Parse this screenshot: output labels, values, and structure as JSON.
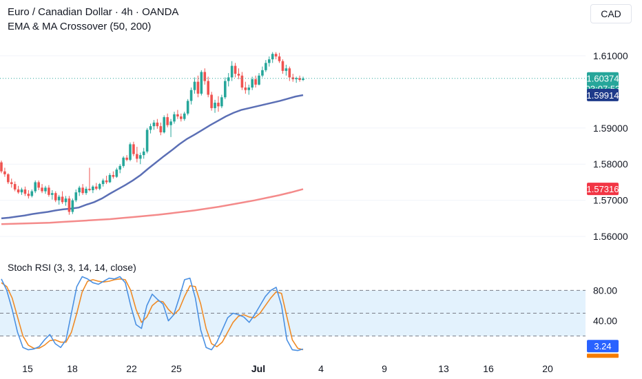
{
  "header": {
    "title": "Euro / Canadian Dollar · 4h · OANDA",
    "indicator": "EMA & MA Crossover (50, 200)",
    "currency": "CAD"
  },
  "oscillator": {
    "title": "Stoch RSI (3, 3, 14, 14, close)"
  },
  "colors": {
    "up": "#26a69a",
    "down": "#ef5350",
    "ema": "#5b6fb5",
    "ma": "#f48a8a",
    "k": "#4a90e2",
    "d": "#f08a24",
    "band": "#e3f2fd"
  },
  "chart_data": [
    {
      "type": "candlestick",
      "ylim": [
        1.5545,
        1.6155
      ],
      "yticks": [
        "1.56000",
        "1.57000",
        "1.58000",
        "1.59000",
        "1.61000"
      ],
      "xticks": [
        "15",
        "18",
        "22",
        "25",
        "Jul",
        "4",
        "9",
        "13",
        "16",
        "20"
      ],
      "last_price": "1.60374",
      "countdown": "03:07:53",
      "ema_label": "1.59914",
      "ma_label": "1.57316",
      "candles": [
        [
          1.5805,
          1.581,
          1.5775,
          1.578
        ],
        [
          1.578,
          1.579,
          1.5765,
          1.5772
        ],
        [
          1.5772,
          1.5775,
          1.5745,
          1.575
        ],
        [
          1.575,
          1.576,
          1.5735,
          1.5745
        ],
        [
          1.5745,
          1.5752,
          1.5725,
          1.573
        ],
        [
          1.573,
          1.574,
          1.5718,
          1.5722
        ],
        [
          1.5722,
          1.5735,
          1.5715,
          1.573
        ],
        [
          1.573,
          1.5738,
          1.5712,
          1.5718
        ],
        [
          1.5718,
          1.5728,
          1.5705,
          1.5712
        ],
        [
          1.5712,
          1.573,
          1.5708,
          1.5725
        ],
        [
          1.5725,
          1.5755,
          1.572,
          1.575
        ],
        [
          1.575,
          1.5755,
          1.5728,
          1.5735
        ],
        [
          1.5735,
          1.5745,
          1.572,
          1.5725
        ],
        [
          1.5725,
          1.574,
          1.5718,
          1.5735
        ],
        [
          1.5735,
          1.5742,
          1.571,
          1.5715
        ],
        [
          1.5715,
          1.5728,
          1.5702,
          1.572
        ],
        [
          1.572,
          1.5725,
          1.5695,
          1.57
        ],
        [
          1.57,
          1.5715,
          1.5688,
          1.571
        ],
        [
          1.571,
          1.5725,
          1.569,
          1.5695
        ],
        [
          1.5695,
          1.5712,
          1.5685,
          1.5705
        ],
        [
          1.5705,
          1.5712,
          1.566,
          1.5668
        ],
        [
          1.5668,
          1.5705,
          1.5662,
          1.57
        ],
        [
          1.57,
          1.573,
          1.5695,
          1.5722
        ],
        [
          1.5722,
          1.574,
          1.5712,
          1.5735
        ],
        [
          1.5735,
          1.5745,
          1.5715,
          1.572
        ],
        [
          1.572,
          1.5738,
          1.5715,
          1.5732
        ],
        [
          1.5732,
          1.579,
          1.5725,
          1.5728
        ],
        [
          1.5728,
          1.5742,
          1.572,
          1.5738
        ],
        [
          1.5738,
          1.5748,
          1.5728,
          1.5732
        ],
        [
          1.5732,
          1.5748,
          1.5728,
          1.5745
        ],
        [
          1.5745,
          1.576,
          1.5738,
          1.5755
        ],
        [
          1.5755,
          1.5768,
          1.5745,
          1.575
        ],
        [
          1.575,
          1.5775,
          1.5748,
          1.577
        ],
        [
          1.577,
          1.578,
          1.576,
          1.5765
        ],
        [
          1.5765,
          1.579,
          1.5762,
          1.5785
        ],
        [
          1.5785,
          1.58,
          1.5775,
          1.5795
        ],
        [
          1.5795,
          1.5822,
          1.579,
          1.5818
        ],
        [
          1.5818,
          1.5825,
          1.5808,
          1.5812
        ],
        [
          1.5812,
          1.586,
          1.5808,
          1.5855
        ],
        [
          1.5855,
          1.5862,
          1.5822,
          1.5828
        ],
        [
          1.5828,
          1.5848,
          1.5805,
          1.5815
        ],
        [
          1.5815,
          1.5832,
          1.58,
          1.5825
        ],
        [
          1.5825,
          1.5845,
          1.5815,
          1.5835
        ],
        [
          1.5835,
          1.59,
          1.583,
          1.5895
        ],
        [
          1.5895,
          1.5912,
          1.5885,
          1.5905
        ],
        [
          1.5905,
          1.5922,
          1.5895,
          1.5915
        ],
        [
          1.5915,
          1.5925,
          1.5898,
          1.5905
        ],
        [
          1.5905,
          1.5915,
          1.588,
          1.5888
        ],
        [
          1.5888,
          1.5935,
          1.5885,
          1.593
        ],
        [
          1.593,
          1.594,
          1.5902,
          1.5908
        ],
        [
          1.5908,
          1.5925,
          1.5875,
          1.5918
        ],
        [
          1.5918,
          1.5945,
          1.5912,
          1.5938
        ],
        [
          1.5938,
          1.595,
          1.5925,
          1.5932
        ],
        [
          1.5932,
          1.594,
          1.5918,
          1.5925
        ],
        [
          1.5925,
          1.5945,
          1.592,
          1.594
        ],
        [
          1.594,
          1.598,
          1.5935,
          1.5975
        ],
        [
          1.5975,
          1.6012,
          1.5965,
          1.6005
        ],
        [
          1.6005,
          1.604,
          1.5995,
          1.6028
        ],
        [
          1.6028,
          1.6045,
          1.5985,
          1.5995
        ],
        [
          1.5995,
          1.606,
          1.599,
          1.6055
        ],
        [
          1.6055,
          1.6065,
          1.602,
          1.603
        ],
        [
          1.603,
          1.6042,
          1.5985,
          1.5992
        ],
        [
          1.5992,
          1.6,
          1.5948,
          1.5955
        ],
        [
          1.5955,
          1.5978,
          1.5942,
          1.597
        ],
        [
          1.597,
          1.5988,
          1.5945,
          1.596
        ],
        [
          1.596,
          1.5992,
          1.5955,
          1.5985
        ],
        [
          1.5985,
          1.604,
          1.598,
          1.603
        ],
        [
          1.603,
          1.6052,
          1.6015,
          1.604
        ],
        [
          1.604,
          1.6085,
          1.603,
          1.6072
        ],
        [
          1.6072,
          1.608,
          1.604,
          1.605
        ],
        [
          1.605,
          1.6065,
          1.6035,
          1.6045
        ],
        [
          1.6045,
          1.6055,
          1.6005,
          1.6012
        ],
        [
          1.6012,
          1.6028,
          1.5995,
          1.6005
        ],
        [
          1.6005,
          1.602,
          1.5992,
          1.6012
        ],
        [
          1.6012,
          1.6042,
          1.6005,
          1.6035
        ],
        [
          1.6035,
          1.6045,
          1.6012,
          1.602
        ],
        [
          1.602,
          1.6052,
          1.6018,
          1.6045
        ],
        [
          1.6045,
          1.607,
          1.604,
          1.606
        ],
        [
          1.606,
          1.6088,
          1.6055,
          1.608
        ],
        [
          1.608,
          1.6098,
          1.607,
          1.609
        ],
        [
          1.609,
          1.611,
          1.608,
          1.6105
        ],
        [
          1.6105,
          1.611,
          1.609,
          1.6098
        ],
        [
          1.6098,
          1.6108,
          1.608,
          1.6085
        ],
        [
          1.6085,
          1.609,
          1.605,
          1.6058
        ],
        [
          1.6058,
          1.6075,
          1.6045,
          1.6065
        ],
        [
          1.6065,
          1.607,
          1.603,
          1.604
        ],
        [
          1.604,
          1.605,
          1.6028,
          1.6035
        ],
        [
          1.6035,
          1.6042,
          1.6025,
          1.6038
        ],
        [
          1.6038,
          1.6045,
          1.6028,
          1.6033
        ],
        [
          1.6033,
          1.6042,
          1.603,
          1.6037
        ]
      ],
      "ema": [
        [
          1.565,
          1.5652,
          1.5655,
          1.5658,
          1.5662,
          1.5665,
          1.5668,
          1.5672,
          1.5675,
          1.5677,
          1.568,
          1.5688,
          1.5695,
          1.5705,
          1.5718,
          1.573,
          1.5742,
          1.5755,
          1.577,
          1.5788,
          1.5805,
          1.5822,
          1.5838,
          1.5855,
          1.587,
          1.5882,
          1.5895,
          1.5908,
          1.592,
          1.5932,
          1.5942,
          1.595,
          1.5955,
          1.596,
          1.5965,
          1.597,
          1.5975,
          1.5981,
          1.5987,
          1.5991
        ]
      ],
      "ma": [
        1.5634,
        1.5635,
        1.5636,
        1.5637,
        1.5638,
        1.564,
        1.5642,
        1.5644,
        1.5646,
        1.5648,
        1.5651,
        1.5654,
        1.5657,
        1.566,
        1.5664,
        1.5668,
        1.5672,
        1.5677,
        1.5682,
        1.5688,
        1.5694,
        1.57,
        1.5707,
        1.5714,
        1.5722,
        1.5731
      ]
    },
    {
      "type": "line",
      "ylim": [
        -2,
        112
      ],
      "yticks": [
        "80.00",
        "40.00"
      ],
      "bands": [
        80,
        50,
        20
      ],
      "k_label": "3.24",
      "k": [
        95,
        80,
        55,
        25,
        5,
        2,
        3,
        6,
        15,
        22,
        10,
        5,
        15,
        50,
        85,
        98,
        95,
        90,
        88,
        92,
        96,
        95,
        98,
        90,
        60,
        35,
        30,
        60,
        75,
        68,
        62,
        40,
        48,
        70,
        94,
        96,
        70,
        28,
        5,
        2,
        12,
        28,
        44,
        50,
        48,
        45,
        38,
        48,
        60,
        72,
        80,
        84,
        60,
        15,
        2,
        1,
        3
      ],
      "d": [
        90,
        85,
        70,
        45,
        20,
        8,
        4,
        4,
        8,
        14,
        15,
        12,
        12,
        25,
        50,
        78,
        92,
        94,
        92,
        91,
        92,
        94,
        95,
        94,
        80,
        55,
        38,
        45,
        60,
        66,
        65,
        55,
        48,
        55,
        72,
        86,
        85,
        62,
        30,
        10,
        6,
        12,
        25,
        38,
        46,
        48,
        45,
        44,
        50,
        60,
        70,
        78,
        76,
        45,
        15,
        4,
        2
      ]
    }
  ]
}
